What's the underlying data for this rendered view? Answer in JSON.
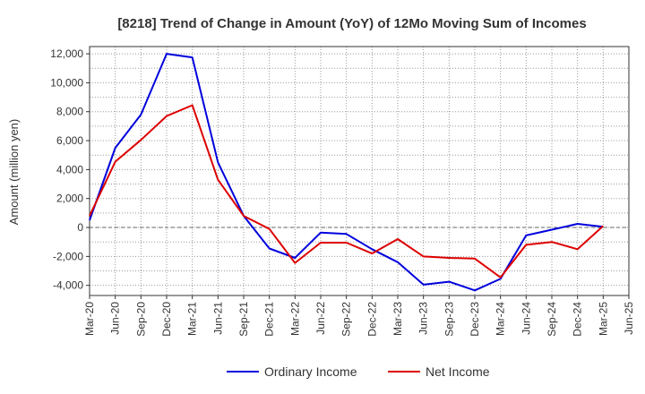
{
  "chart_data": {
    "type": "line",
    "title": "[8218]  Trend of Change in Amount (YoY) of 12Mo Moving Sum of Incomes",
    "ylabel": "Amount (million yen)",
    "xlabel": "",
    "ylim": [
      -4700,
      12500
    ],
    "yticks": [
      12000,
      10000,
      8000,
      6000,
      4000,
      2000,
      0,
      -2000,
      -4000
    ],
    "ytick_labels": [
      "12,000",
      "10,000",
      "8,000",
      "6,000",
      "4,000",
      "2,000",
      "0",
      "-2,000",
      "-4,000"
    ],
    "x_tick_labels": [
      "Mar-20",
      "Jun-20",
      "Sep-20",
      "Dec-20",
      "Mar-21",
      "Jun-21",
      "Sep-21",
      "Dec-21",
      "Mar-22",
      "Jun-22",
      "Sep-22",
      "Dec-22",
      "Mar-23",
      "Jun-23",
      "Sep-23",
      "Dec-23",
      "Mar-24",
      "Jun-24",
      "Sep-24",
      "Dec-24",
      "Mar-25",
      "Jun-25"
    ],
    "grid": true,
    "legend_position": "bottom",
    "series": [
      {
        "name": "Ordinary Income",
        "color": "#0000dd",
        "values": [
          500,
          5500,
          7800,
          12000,
          11750,
          4500,
          800,
          -1450,
          -2100,
          -350,
          -450,
          -1500,
          -2400,
          -3950,
          -3750,
          -4350,
          -3550,
          -550,
          -150,
          250,
          50
        ]
      },
      {
        "name": "Net Income",
        "color": "#dd0000",
        "values": [
          800,
          4550,
          6050,
          7700,
          8450,
          3300,
          800,
          -100,
          -2450,
          -1050,
          -1050,
          -1800,
          -800,
          -2000,
          -2100,
          -2150,
          -3450,
          -1200,
          -1000,
          -1500,
          100
        ]
      }
    ]
  }
}
